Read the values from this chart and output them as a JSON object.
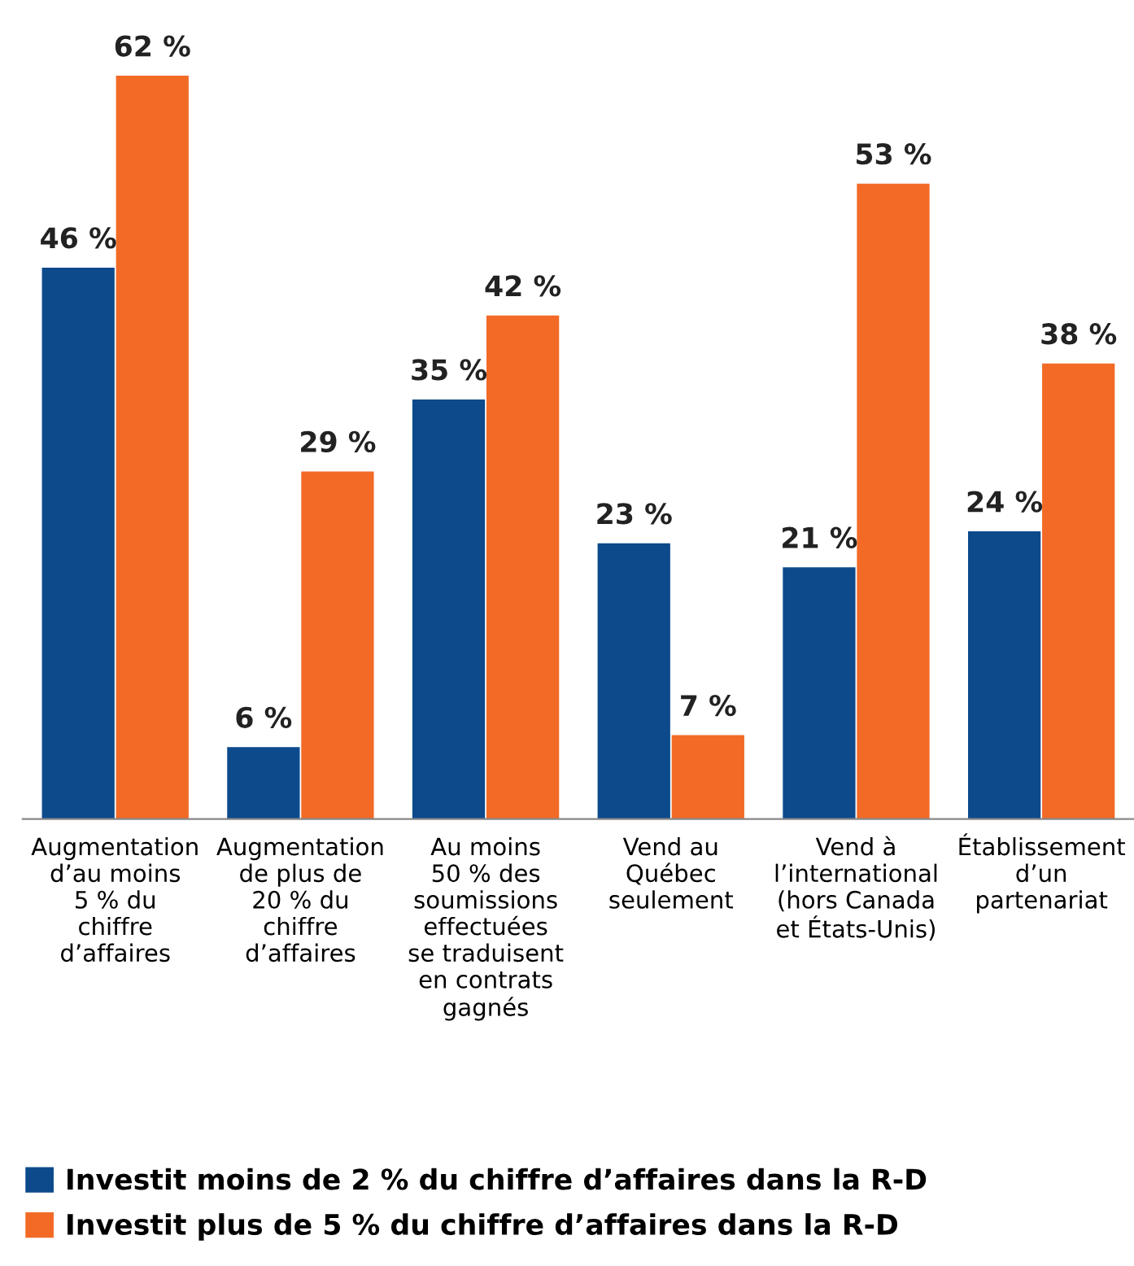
{
  "chart_data": {
    "type": "bar",
    "categories": [
      "Augmentation\nd’au moins\n5 % du\nchiffre\nd’affaires",
      "Augmentation\nde plus de\n20 % du\nchiffre\nd’affaires",
      "Au moins\n50 % des\nsoumissions\neffectuées\nse traduisent\nen contrats\ngagnés",
      "Vend au\nQuébec\nseulement",
      "Vend à\nl’international\n(hors Canada\net États-Unis)",
      "Établissement\nd’un\npartenariat"
    ],
    "series": [
      {
        "name": "Investit moins de 2 % du chiffre d’affaires dans la R-D",
        "color": "#0c4a8c",
        "values": [
          46,
          6,
          35,
          23,
          21,
          24
        ],
        "value_labels": [
          "46 %",
          "6 %",
          "35 %",
          "23 %",
          "21 %",
          "24 %"
        ]
      },
      {
        "name": "Investit plus de 5 % du chiffre d’affaires dans la R-D",
        "color": "#f26a26",
        "values": [
          62,
          29,
          42,
          7,
          53,
          38
        ],
        "value_labels": [
          "62 %",
          "29 %",
          "42 %",
          "7 %",
          "53 %",
          "38 %"
        ]
      }
    ],
    "legend": "bottom left",
    "grid": false
  }
}
